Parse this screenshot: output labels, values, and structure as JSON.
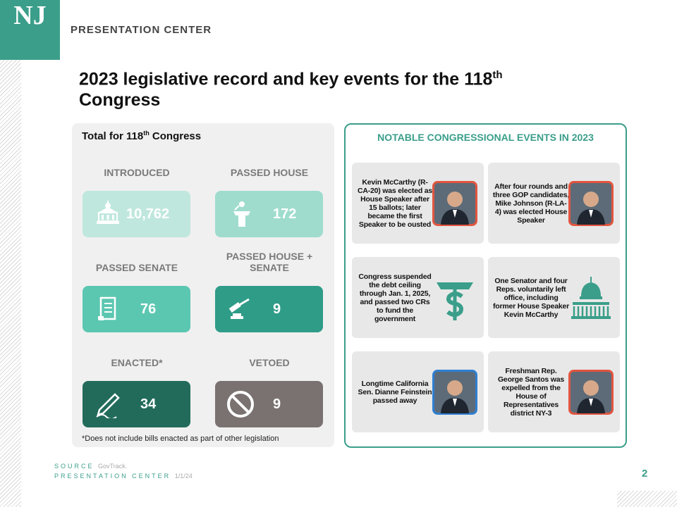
{
  "header": {
    "logo": "NJ",
    "section": "PRESENTATION CENTER"
  },
  "title": {
    "main": "2023 legislative record and key events for the 118",
    "sup": "th",
    "end": "Congress"
  },
  "left_panel": {
    "heading": "Total for 118",
    "heading_sup": "th",
    "heading_end": " Congress",
    "stats": [
      {
        "label": "INTRODUCED",
        "value": "10,762",
        "color": "#bfe7de"
      },
      {
        "label": "PASSED HOUSE",
        "value": "172",
        "color": "#9fdccd"
      },
      {
        "label": "PASSED SENATE",
        "value": "76",
        "color": "#5bc7b1"
      },
      {
        "label": "PASSED HOUSE + SENATE",
        "value": "9",
        "color": "#2f9c88"
      },
      {
        "label": "ENACTED*",
        "value": "34",
        "color": "#226b5b"
      },
      {
        "label": "VETOED",
        "value": "9",
        "color": "#797270"
      }
    ],
    "footnote": "*Does not include bills enacted as part of other legislation"
  },
  "right_panel": {
    "heading": "NOTABLE CONGRESSIONAL EVENTS IN 2023",
    "events": [
      "Kevin McCarthy (R-CA-20) was elected as House Speaker after 15 ballots; later became the first Speaker to be ousted",
      "After four rounds and three GOP candidates, Mike Johnson (R-LA-4) was elected House Speaker",
      "Congress suspended the debt ceiling through Jan. 1, 2025, and passed two CRs to fund the government",
      "One Senator and four Reps. voluntarily left office, including former House Speaker Kevin McCarthy",
      "Longtime California Sen. Dianne Feinstein passed away",
      "Freshman Rep. George Santos was expelled from the House of Representatives district NY-3"
    ]
  },
  "footer": {
    "source_label": "SOURCE",
    "source": "GovTrack.",
    "center": "PRESENTATION CENTER",
    "date": "1/1/24",
    "page": "2"
  }
}
